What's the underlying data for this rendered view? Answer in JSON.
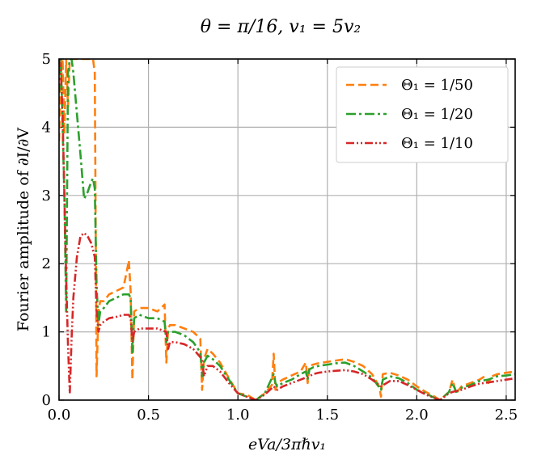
{
  "chart_data": {
    "type": "line",
    "title": "θ = π/16, v₁ = 5v₂",
    "xlabel": "eVa/3πℏv₁",
    "ylabel": "Fourier amplitude of ∂I/∂V",
    "xlim": [
      0.0,
      2.55
    ],
    "ylim": [
      0,
      5
    ],
    "xticks": [
      "0.0",
      "0.5",
      "1.0",
      "1.5",
      "2.0",
      "2.5"
    ],
    "yticks": [
      "0",
      "1",
      "2",
      "3",
      "4",
      "5"
    ],
    "grid": true,
    "legend_position": "top-right",
    "series": [
      {
        "name": "Θ₁ = 1/50",
        "color": "#ff7f0e",
        "dash": "dashed",
        "x": [
          0.0,
          0.01,
          0.02,
          0.03,
          0.04,
          0.05,
          0.06,
          0.08,
          0.1,
          0.12,
          0.15,
          0.17,
          0.19,
          0.2,
          0.21,
          0.22,
          0.23,
          0.25,
          0.28,
          0.32,
          0.36,
          0.38,
          0.39,
          0.4,
          0.41,
          0.42,
          0.45,
          0.5,
          0.55,
          0.59,
          0.6,
          0.61,
          0.62,
          0.65,
          0.7,
          0.75,
          0.79,
          0.8,
          0.81,
          0.83,
          0.86,
          0.9,
          0.95,
          1.0,
          1.05,
          1.1,
          1.15,
          1.19,
          1.2,
          1.21,
          1.22,
          1.25,
          1.3,
          1.35,
          1.38,
          1.39,
          1.4,
          1.42,
          1.45,
          1.5,
          1.55,
          1.6,
          1.65,
          1.7,
          1.75,
          1.79,
          1.8,
          1.81,
          1.85,
          1.9,
          1.95,
          2.0,
          2.05,
          2.1,
          2.13,
          2.18,
          2.2,
          2.22,
          2.25,
          2.3,
          2.35,
          2.38,
          2.4,
          2.42,
          2.45,
          2.5,
          2.55
        ],
        "values": [
          3.8,
          4.6,
          5.0,
          3.9,
          5.0,
          4.3,
          5.0,
          5.0,
          5.0,
          5.0,
          5.0,
          5.0,
          5.0,
          4.8,
          0.35,
          1.3,
          1.45,
          1.45,
          1.55,
          1.6,
          1.65,
          1.9,
          2.05,
          1.6,
          0.3,
          1.3,
          1.35,
          1.35,
          1.3,
          1.4,
          0.55,
          1.05,
          1.1,
          1.1,
          1.05,
          1.0,
          0.9,
          0.15,
          0.6,
          0.75,
          0.68,
          0.55,
          0.32,
          0.1,
          0.08,
          0.0,
          0.1,
          0.22,
          0.68,
          0.15,
          0.25,
          0.3,
          0.36,
          0.42,
          0.55,
          0.25,
          0.5,
          0.52,
          0.54,
          0.56,
          0.58,
          0.6,
          0.56,
          0.5,
          0.38,
          0.2,
          0.05,
          0.38,
          0.4,
          0.36,
          0.3,
          0.2,
          0.12,
          0.05,
          0.0,
          0.12,
          0.3,
          0.1,
          0.2,
          0.25,
          0.3,
          0.35,
          0.25,
          0.35,
          0.38,
          0.4,
          0.42
        ]
      },
      {
        "name": "Θ₁ = 1/20",
        "color": "#2ca02c",
        "dash": "dashdot",
        "x": [
          0.0,
          0.01,
          0.02,
          0.03,
          0.04,
          0.05,
          0.06,
          0.07,
          0.08,
          0.1,
          0.12,
          0.14,
          0.16,
          0.18,
          0.19,
          0.2,
          0.21,
          0.22,
          0.23,
          0.25,
          0.28,
          0.32,
          0.36,
          0.39,
          0.4,
          0.41,
          0.42,
          0.45,
          0.5,
          0.55,
          0.59,
          0.6,
          0.61,
          0.62,
          0.65,
          0.7,
          0.75,
          0.79,
          0.8,
          0.81,
          0.83,
          0.86,
          0.9,
          0.95,
          1.0,
          1.05,
          1.1,
          1.15,
          1.2,
          1.21,
          1.22,
          1.25,
          1.3,
          1.35,
          1.38,
          1.39,
          1.4,
          1.42,
          1.45,
          1.5,
          1.55,
          1.6,
          1.65,
          1.7,
          1.75,
          1.8,
          1.81,
          1.85,
          1.9,
          1.95,
          2.0,
          2.05,
          2.1,
          2.13,
          2.18,
          2.2,
          2.22,
          2.25,
          2.3,
          2.35,
          2.4,
          2.45,
          2.5,
          2.55
        ],
        "values": [
          4.5,
          5.0,
          4.0,
          3.0,
          1.3,
          4.8,
          5.0,
          5.0,
          4.8,
          4.2,
          3.6,
          2.95,
          3.05,
          3.2,
          3.25,
          3.1,
          1.7,
          1.1,
          1.3,
          1.35,
          1.45,
          1.5,
          1.55,
          1.55,
          1.5,
          0.7,
          1.2,
          1.25,
          1.2,
          1.2,
          1.15,
          0.85,
          1.0,
          1.0,
          1.0,
          0.95,
          0.85,
          0.7,
          0.35,
          0.55,
          0.65,
          0.6,
          0.5,
          0.3,
          0.1,
          0.05,
          0.0,
          0.1,
          0.38,
          0.25,
          0.2,
          0.25,
          0.3,
          0.38,
          0.42,
          0.3,
          0.45,
          0.48,
          0.5,
          0.52,
          0.54,
          0.55,
          0.5,
          0.42,
          0.33,
          0.15,
          0.3,
          0.35,
          0.32,
          0.25,
          0.15,
          0.1,
          0.03,
          0.0,
          0.12,
          0.25,
          0.12,
          0.18,
          0.22,
          0.28,
          0.3,
          0.35,
          0.36,
          0.38
        ]
      },
      {
        "name": "Θ₁ = 1/10",
        "color": "#d62728",
        "dash": "dashdotdot",
        "x": [
          0.0,
          0.01,
          0.02,
          0.03,
          0.04,
          0.05,
          0.06,
          0.07,
          0.08,
          0.1,
          0.12,
          0.14,
          0.16,
          0.18,
          0.2,
          0.21,
          0.22,
          0.23,
          0.25,
          0.28,
          0.32,
          0.36,
          0.39,
          0.4,
          0.41,
          0.42,
          0.45,
          0.5,
          0.55,
          0.6,
          0.61,
          0.62,
          0.65,
          0.7,
          0.75,
          0.8,
          0.81,
          0.83,
          0.86,
          0.9,
          0.95,
          1.0,
          1.05,
          1.1,
          1.15,
          1.2,
          1.22,
          1.25,
          1.3,
          1.35,
          1.4,
          1.42,
          1.45,
          1.5,
          1.55,
          1.6,
          1.65,
          1.7,
          1.75,
          1.8,
          1.85,
          1.9,
          1.95,
          2.0,
          2.05,
          2.1,
          2.13,
          2.18,
          2.2,
          2.25,
          2.3,
          2.35,
          2.4,
          2.45,
          2.5,
          2.55
        ],
        "values": [
          5.0,
          4.8,
          4.2,
          3.0,
          1.8,
          0.8,
          0.1,
          0.9,
          1.5,
          2.1,
          2.4,
          2.45,
          2.4,
          2.3,
          2.1,
          1.3,
          1.0,
          1.1,
          1.15,
          1.2,
          1.22,
          1.25,
          1.25,
          1.2,
          0.85,
          1.0,
          1.05,
          1.05,
          1.05,
          1.0,
          0.75,
          0.85,
          0.85,
          0.82,
          0.75,
          0.6,
          0.35,
          0.5,
          0.5,
          0.42,
          0.25,
          0.1,
          0.05,
          0.0,
          0.08,
          0.2,
          0.15,
          0.2,
          0.25,
          0.3,
          0.35,
          0.38,
          0.4,
          0.42,
          0.43,
          0.44,
          0.42,
          0.38,
          0.3,
          0.2,
          0.28,
          0.28,
          0.22,
          0.15,
          0.08,
          0.03,
          0.0,
          0.1,
          0.12,
          0.15,
          0.2,
          0.24,
          0.26,
          0.28,
          0.3,
          0.32
        ]
      }
    ]
  }
}
